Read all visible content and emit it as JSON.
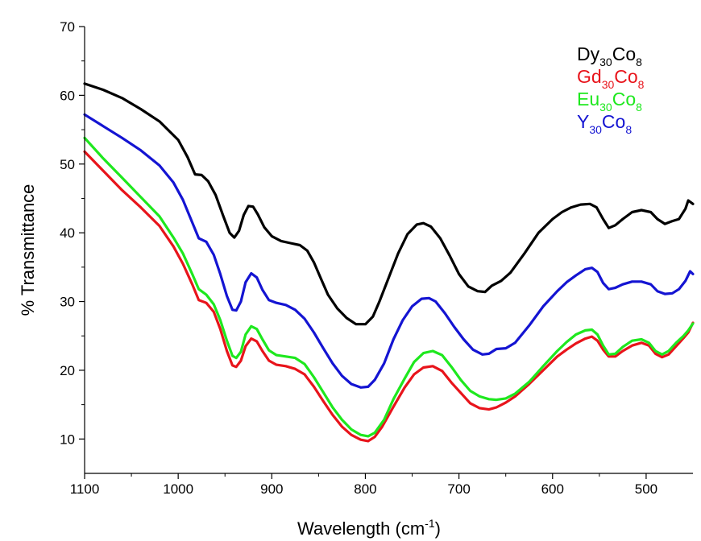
{
  "chart_data": {
    "type": "line",
    "xlabel": "Wavelength (cm",
    "xlabel_sup": "-1",
    "xlabel_close": ")",
    "ylabel": "% Transmittance",
    "xlim": [
      1100,
      450
    ],
    "ylim": [
      5,
      70
    ],
    "x_ticks": [
      1100,
      1000,
      900,
      800,
      700,
      600,
      500
    ],
    "y_ticks": [
      10,
      20,
      30,
      40,
      50,
      60,
      70
    ],
    "x_tick_labels": [
      "1100",
      "1000",
      "900",
      "800",
      "700",
      "600",
      "500"
    ],
    "y_tick_labels": [
      "10",
      "20",
      "30",
      "40",
      "50",
      "60",
      "70"
    ],
    "legend_position": "top-right",
    "series": [
      {
        "name": "Dy30Co8",
        "label_base": "Dy",
        "label_sub1": "30",
        "label_mid": "Co",
        "label_sub2": "8",
        "color": "#000000",
        "points": [
          [
            1100,
            61.7
          ],
          [
            1080,
            60.8
          ],
          [
            1060,
            59.6
          ],
          [
            1040,
            58.0
          ],
          [
            1020,
            56.2
          ],
          [
            1000,
            53.5
          ],
          [
            990,
            51.0
          ],
          [
            982,
            48.5
          ],
          [
            975,
            48.4
          ],
          [
            968,
            47.5
          ],
          [
            960,
            45.5
          ],
          [
            952,
            42.5
          ],
          [
            945,
            40.0
          ],
          [
            940,
            39.3
          ],
          [
            935,
            40.3
          ],
          [
            930,
            42.6
          ],
          [
            925,
            43.9
          ],
          [
            920,
            43.8
          ],
          [
            915,
            42.7
          ],
          [
            908,
            40.8
          ],
          [
            900,
            39.5
          ],
          [
            890,
            38.8
          ],
          [
            880,
            38.5
          ],
          [
            870,
            38.2
          ],
          [
            862,
            37.4
          ],
          [
            855,
            35.7
          ],
          [
            848,
            33.5
          ],
          [
            840,
            31.0
          ],
          [
            830,
            29.0
          ],
          [
            820,
            27.6
          ],
          [
            810,
            26.7
          ],
          [
            800,
            26.7
          ],
          [
            792,
            27.8
          ],
          [
            785,
            30.0
          ],
          [
            775,
            33.5
          ],
          [
            765,
            37.0
          ],
          [
            755,
            39.8
          ],
          [
            745,
            41.2
          ],
          [
            738,
            41.4
          ],
          [
            730,
            40.9
          ],
          [
            720,
            39.2
          ],
          [
            710,
            36.7
          ],
          [
            700,
            34.0
          ],
          [
            690,
            32.2
          ],
          [
            680,
            31.5
          ],
          [
            672,
            31.4
          ],
          [
            665,
            32.3
          ],
          [
            655,
            33.0
          ],
          [
            645,
            34.2
          ],
          [
            630,
            37.0
          ],
          [
            615,
            40.0
          ],
          [
            600,
            42.0
          ],
          [
            590,
            43.0
          ],
          [
            580,
            43.7
          ],
          [
            570,
            44.1
          ],
          [
            560,
            44.2
          ],
          [
            553,
            43.7
          ],
          [
            546,
            42.0
          ],
          [
            540,
            40.7
          ],
          [
            533,
            41.1
          ],
          [
            525,
            42.0
          ],
          [
            515,
            43.0
          ],
          [
            505,
            43.3
          ],
          [
            495,
            43.0
          ],
          [
            488,
            42.0
          ],
          [
            480,
            41.3
          ],
          [
            472,
            41.7
          ],
          [
            465,
            42.0
          ],
          [
            458,
            43.5
          ],
          [
            455,
            44.7
          ],
          [
            450,
            44.2
          ]
        ]
      },
      {
        "name": "Gd30Co8",
        "label_base": "Gd",
        "label_sub1": "30",
        "label_mid": "Co",
        "label_sub2": "8",
        "color": "#e8141b",
        "points": [
          [
            1100,
            51.8
          ],
          [
            1080,
            49.0
          ],
          [
            1060,
            46.2
          ],
          [
            1040,
            43.7
          ],
          [
            1020,
            41.0
          ],
          [
            1005,
            38.0
          ],
          [
            995,
            35.5
          ],
          [
            985,
            32.5
          ],
          [
            978,
            30.2
          ],
          [
            970,
            29.8
          ],
          [
            962,
            28.5
          ],
          [
            955,
            26.0
          ],
          [
            948,
            22.8
          ],
          [
            942,
            20.7
          ],
          [
            938,
            20.5
          ],
          [
            933,
            21.4
          ],
          [
            928,
            23.5
          ],
          [
            922,
            24.6
          ],
          [
            916,
            24.2
          ],
          [
            910,
            22.8
          ],
          [
            903,
            21.4
          ],
          [
            895,
            20.8
          ],
          [
            885,
            20.6
          ],
          [
            875,
            20.2
          ],
          [
            865,
            19.4
          ],
          [
            855,
            17.6
          ],
          [
            845,
            15.5
          ],
          [
            835,
            13.5
          ],
          [
            825,
            11.8
          ],
          [
            815,
            10.6
          ],
          [
            805,
            9.9
          ],
          [
            797,
            9.7
          ],
          [
            790,
            10.3
          ],
          [
            782,
            11.8
          ],
          [
            770,
            14.7
          ],
          [
            758,
            17.5
          ],
          [
            748,
            19.4
          ],
          [
            738,
            20.4
          ],
          [
            728,
            20.6
          ],
          [
            718,
            19.9
          ],
          [
            708,
            18.2
          ],
          [
            698,
            16.7
          ],
          [
            688,
            15.2
          ],
          [
            678,
            14.5
          ],
          [
            668,
            14.3
          ],
          [
            660,
            14.6
          ],
          [
            650,
            15.3
          ],
          [
            640,
            16.2
          ],
          [
            625,
            18.0
          ],
          [
            610,
            20.0
          ],
          [
            595,
            22.0
          ],
          [
            585,
            23.0
          ],
          [
            575,
            23.9
          ],
          [
            565,
            24.6
          ],
          [
            558,
            24.9
          ],
          [
            552,
            24.3
          ],
          [
            546,
            23.0
          ],
          [
            540,
            22.0
          ],
          [
            533,
            22.0
          ],
          [
            525,
            22.8
          ],
          [
            515,
            23.6
          ],
          [
            505,
            24.0
          ],
          [
            497,
            23.6
          ],
          [
            490,
            22.4
          ],
          [
            483,
            21.9
          ],
          [
            476,
            22.3
          ],
          [
            468,
            23.5
          ],
          [
            460,
            24.7
          ],
          [
            455,
            25.5
          ],
          [
            450,
            26.9
          ]
        ]
      },
      {
        "name": "Eu30Co8",
        "label_base": "Eu",
        "label_sub1": "30",
        "label_mid": "Co",
        "label_sub2": "8",
        "color": "#1ee81e",
        "points": [
          [
            1100,
            53.8
          ],
          [
            1080,
            50.8
          ],
          [
            1060,
            48.0
          ],
          [
            1040,
            45.2
          ],
          [
            1020,
            42.4
          ],
          [
            1005,
            39.3
          ],
          [
            995,
            37.0
          ],
          [
            985,
            34.0
          ],
          [
            978,
            31.8
          ],
          [
            970,
            31.0
          ],
          [
            962,
            29.6
          ],
          [
            955,
            27.3
          ],
          [
            948,
            24.3
          ],
          [
            942,
            22.1
          ],
          [
            938,
            21.8
          ],
          [
            933,
            22.7
          ],
          [
            928,
            25.2
          ],
          [
            922,
            26.4
          ],
          [
            916,
            26.0
          ],
          [
            910,
            24.5
          ],
          [
            903,
            22.9
          ],
          [
            895,
            22.2
          ],
          [
            885,
            22.0
          ],
          [
            875,
            21.8
          ],
          [
            865,
            20.9
          ],
          [
            855,
            19.0
          ],
          [
            845,
            16.8
          ],
          [
            835,
            14.6
          ],
          [
            825,
            12.8
          ],
          [
            815,
            11.4
          ],
          [
            805,
            10.6
          ],
          [
            797,
            10.4
          ],
          [
            790,
            10.9
          ],
          [
            780,
            12.8
          ],
          [
            770,
            15.8
          ],
          [
            758,
            18.8
          ],
          [
            748,
            21.2
          ],
          [
            738,
            22.5
          ],
          [
            728,
            22.8
          ],
          [
            718,
            22.2
          ],
          [
            708,
            20.5
          ],
          [
            698,
            18.6
          ],
          [
            688,
            17.0
          ],
          [
            678,
            16.2
          ],
          [
            668,
            15.8
          ],
          [
            660,
            15.7
          ],
          [
            650,
            15.9
          ],
          [
            640,
            16.6
          ],
          [
            625,
            18.3
          ],
          [
            610,
            20.6
          ],
          [
            595,
            22.8
          ],
          [
            585,
            24.1
          ],
          [
            575,
            25.2
          ],
          [
            565,
            25.8
          ],
          [
            558,
            25.9
          ],
          [
            552,
            25.2
          ],
          [
            546,
            23.6
          ],
          [
            540,
            22.3
          ],
          [
            533,
            22.4
          ],
          [
            525,
            23.4
          ],
          [
            515,
            24.3
          ],
          [
            505,
            24.5
          ],
          [
            497,
            24.0
          ],
          [
            490,
            22.8
          ],
          [
            483,
            22.3
          ],
          [
            476,
            22.8
          ],
          [
            468,
            24.0
          ],
          [
            460,
            25.0
          ],
          [
            455,
            25.8
          ],
          [
            450,
            26.8
          ]
        ]
      },
      {
        "name": "Y30Co8",
        "label_base": "Y",
        "label_sub1": "30",
        "label_mid": "Co",
        "label_sub2": "8",
        "color": "#1414d2",
        "points": [
          [
            1100,
            57.2
          ],
          [
            1080,
            55.5
          ],
          [
            1060,
            53.8
          ],
          [
            1040,
            52.0
          ],
          [
            1020,
            49.8
          ],
          [
            1005,
            47.3
          ],
          [
            995,
            44.8
          ],
          [
            985,
            41.5
          ],
          [
            978,
            39.2
          ],
          [
            970,
            38.7
          ],
          [
            962,
            36.8
          ],
          [
            955,
            34.0
          ],
          [
            948,
            30.8
          ],
          [
            942,
            28.8
          ],
          [
            938,
            28.7
          ],
          [
            933,
            30.0
          ],
          [
            928,
            32.8
          ],
          [
            922,
            34.1
          ],
          [
            916,
            33.5
          ],
          [
            910,
            31.7
          ],
          [
            903,
            30.2
          ],
          [
            895,
            29.8
          ],
          [
            885,
            29.5
          ],
          [
            875,
            28.8
          ],
          [
            865,
            27.5
          ],
          [
            855,
            25.5
          ],
          [
            845,
            23.2
          ],
          [
            835,
            21.0
          ],
          [
            825,
            19.2
          ],
          [
            815,
            18.0
          ],
          [
            805,
            17.5
          ],
          [
            797,
            17.6
          ],
          [
            790,
            18.6
          ],
          [
            780,
            21.0
          ],
          [
            770,
            24.5
          ],
          [
            760,
            27.3
          ],
          [
            750,
            29.3
          ],
          [
            740,
            30.4
          ],
          [
            732,
            30.5
          ],
          [
            725,
            30.0
          ],
          [
            715,
            28.3
          ],
          [
            705,
            26.3
          ],
          [
            695,
            24.5
          ],
          [
            685,
            23.0
          ],
          [
            675,
            22.3
          ],
          [
            668,
            22.4
          ],
          [
            660,
            23.1
          ],
          [
            650,
            23.2
          ],
          [
            640,
            24.0
          ],
          [
            625,
            26.5
          ],
          [
            610,
            29.3
          ],
          [
            595,
            31.5
          ],
          [
            585,
            32.8
          ],
          [
            575,
            33.8
          ],
          [
            565,
            34.7
          ],
          [
            558,
            34.9
          ],
          [
            552,
            34.3
          ],
          [
            546,
            32.7
          ],
          [
            540,
            31.8
          ],
          [
            533,
            32.0
          ],
          [
            525,
            32.5
          ],
          [
            515,
            32.9
          ],
          [
            505,
            32.9
          ],
          [
            495,
            32.5
          ],
          [
            488,
            31.5
          ],
          [
            480,
            31.1
          ],
          [
            472,
            31.2
          ],
          [
            465,
            31.8
          ],
          [
            458,
            33.0
          ],
          [
            453,
            34.4
          ],
          [
            450,
            34.0
          ]
        ]
      }
    ]
  }
}
